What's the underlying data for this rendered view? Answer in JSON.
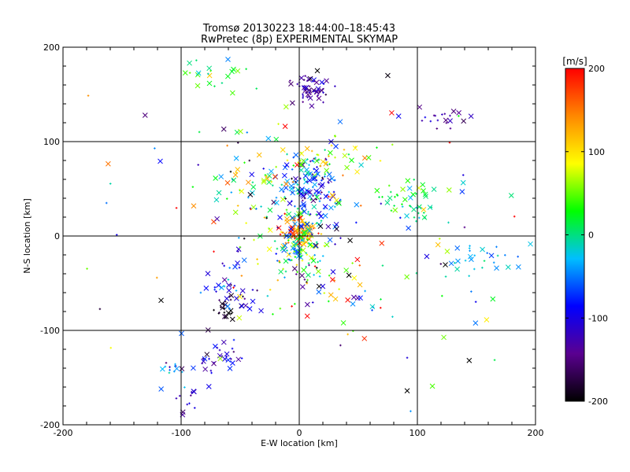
{
  "chart_data": {
    "type": "scatter",
    "title": "Tromsø 20130223 18:44:00–18:45:43",
    "subtitle": "RwPretec (8p) EXPERIMENTAL SKYMAP",
    "xlabel": "E-W location [km]",
    "ylabel": "N-S location [km]",
    "xlim": [
      -200,
      200
    ],
    "ylim": [
      -200,
      200
    ],
    "xticks": [
      "-200",
      "-100",
      "0",
      "100",
      "200"
    ],
    "yticks": [
      "-200",
      "-100",
      "0",
      "100",
      "200"
    ],
    "grid": true,
    "colorbar": {
      "label": "[m/s]",
      "min": -200,
      "max": 200,
      "ticks": [
        "-200",
        "-100",
        "0",
        "100",
        "200"
      ],
      "colormap": [
        "#000000",
        "#5a0090",
        "#0000ff",
        "#00bfff",
        "#00ff00",
        "#ffff00",
        "#ff8800",
        "#ff0000"
      ]
    },
    "markers": {
      "large": "x",
      "small": "+"
    },
    "clusters": [
      {
        "x": 0,
        "y": 5,
        "sx": 7,
        "sy": 8,
        "v": 140,
        "vs": 40,
        "n": 110
      },
      {
        "x": 0,
        "y": -15,
        "sx": 12,
        "sy": 12,
        "v": 10,
        "vs": 50,
        "n": 80
      },
      {
        "x": 10,
        "y": 45,
        "sx": 12,
        "sy": 22,
        "v": -60,
        "vs": 70,
        "n": 170
      },
      {
        "x": 15,
        "y": 85,
        "sx": 25,
        "sy": 12,
        "v": 60,
        "vs": 40,
        "n": 40
      },
      {
        "x": 10,
        "y": 155,
        "sx": 8,
        "sy": 7,
        "v": -130,
        "vs": 20,
        "n": 55
      },
      {
        "x": -60,
        "y": -75,
        "sx": 5,
        "sy": 6,
        "v": -195,
        "vs": 12,
        "n": 25
      },
      {
        "x": -60,
        "y": -55,
        "sx": 10,
        "sy": 15,
        "v": -100,
        "vs": 40,
        "n": 35
      },
      {
        "x": -65,
        "y": -125,
        "sx": 8,
        "sy": 8,
        "v": -110,
        "vs": 30,
        "n": 28
      },
      {
        "x": -95,
        "y": -170,
        "sx": 12,
        "sy": 15,
        "v": -120,
        "vs": 30,
        "n": 20
      },
      {
        "x": -105,
        "y": -140,
        "sx": 6,
        "sy": 4,
        "v": -40,
        "vs": 15,
        "n": 10
      },
      {
        "x": 85,
        "y": 40,
        "sx": 12,
        "sy": 8,
        "v": 10,
        "vs": 20,
        "n": 30
      },
      {
        "x": 100,
        "y": 25,
        "sx": 8,
        "sy": 5,
        "v": -10,
        "vs": 20,
        "n": 12
      },
      {
        "x": 155,
        "y": -25,
        "sx": 20,
        "sy": 12,
        "v": -30,
        "vs": 20,
        "n": 30
      },
      {
        "x": 120,
        "y": 125,
        "sx": 12,
        "sy": 5,
        "v": -130,
        "vs": 20,
        "n": 20
      },
      {
        "x": -70,
        "y": 170,
        "sx": 18,
        "sy": 10,
        "v": 20,
        "vs": 30,
        "n": 22
      },
      {
        "x": -30,
        "y": 50,
        "sx": 22,
        "sy": 25,
        "v": 0,
        "vs": 110,
        "n": 70
      },
      {
        "x": 30,
        "y": -50,
        "sx": 25,
        "sy": 20,
        "v": 0,
        "vs": 130,
        "n": 45
      },
      {
        "x": 0,
        "y": 0,
        "sx": 100,
        "sy": 95,
        "v": 0,
        "vs": 120,
        "n": 140
      }
    ]
  }
}
